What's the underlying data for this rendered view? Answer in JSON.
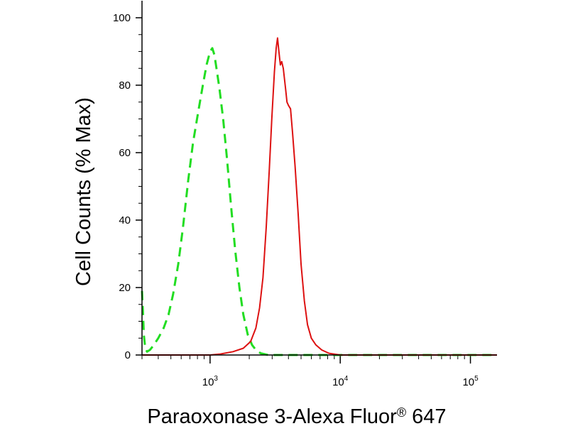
{
  "chart_data": {
    "type": "line",
    "xscale": "log",
    "xlim": [
      300,
      160000
    ],
    "ylim": [
      0,
      100
    ],
    "xlabel": "Paraoxonase 3-Alexa Fluor",
    "xlabel_superscript": "®",
    "xlabel_suffix": " 647",
    "ylabel": "Cell Counts (% Max)",
    "grid": false,
    "y_ticks": [
      {
        "value": 0,
        "label": "0"
      },
      {
        "value": 20,
        "label": "20"
      },
      {
        "value": 40,
        "label": "40"
      },
      {
        "value": 60,
        "label": "60"
      },
      {
        "value": 80,
        "label": "80"
      },
      {
        "value": 100,
        "label": "100"
      }
    ],
    "x_major_ticks": [
      {
        "value": 1000,
        "base": "10",
        "exp": "3"
      },
      {
        "value": 10000,
        "base": "10",
        "exp": "4"
      },
      {
        "value": 100000,
        "base": "10",
        "exp": "5"
      }
    ],
    "series": [
      {
        "style": "dashed",
        "color": "#22dd22",
        "points": [
          [
            300,
            19
          ],
          [
            305,
            13
          ],
          [
            310,
            6
          ],
          [
            318,
            2
          ],
          [
            328,
            1
          ],
          [
            345,
            1.5
          ],
          [
            370,
            3
          ],
          [
            400,
            5
          ],
          [
            440,
            8
          ],
          [
            480,
            12
          ],
          [
            520,
            18
          ],
          [
            570,
            27
          ],
          [
            620,
            38
          ],
          [
            680,
            52
          ],
          [
            740,
            63
          ],
          [
            810,
            72
          ],
          [
            880,
            80
          ],
          [
            940,
            86
          ],
          [
            1000,
            90
          ],
          [
            1040,
            91
          ],
          [
            1080,
            89
          ],
          [
            1120,
            85
          ],
          [
            1180,
            79
          ],
          [
            1260,
            70
          ],
          [
            1350,
            58
          ],
          [
            1450,
            44
          ],
          [
            1560,
            31
          ],
          [
            1680,
            20
          ],
          [
            1800,
            12
          ],
          [
            1950,
            6
          ],
          [
            2100,
            3
          ],
          [
            2250,
            1.5
          ],
          [
            2450,
            0.5
          ],
          [
            2800,
            0
          ],
          [
            4000,
            0
          ],
          [
            20000,
            0
          ],
          [
            160000,
            0
          ]
        ]
      },
      {
        "style": "solid",
        "color": "#dd1111",
        "points": [
          [
            300,
            0
          ],
          [
            1000,
            0
          ],
          [
            1200,
            0.3
          ],
          [
            1500,
            1
          ],
          [
            1800,
            2
          ],
          [
            2050,
            4
          ],
          [
            2250,
            8
          ],
          [
            2400,
            14
          ],
          [
            2550,
            23
          ],
          [
            2700,
            38
          ],
          [
            2850,
            55
          ],
          [
            2980,
            70
          ],
          [
            3120,
            84
          ],
          [
            3220,
            91
          ],
          [
            3300,
            94
          ],
          [
            3380,
            90
          ],
          [
            3470,
            86
          ],
          [
            3550,
            87
          ],
          [
            3650,
            85
          ],
          [
            3800,
            79
          ],
          [
            3900,
            75
          ],
          [
            4000,
            74
          ],
          [
            4150,
            73
          ],
          [
            4300,
            66
          ],
          [
            4500,
            56
          ],
          [
            4750,
            42
          ],
          [
            5000,
            27
          ],
          [
            5300,
            16
          ],
          [
            5600,
            9
          ],
          [
            6000,
            5
          ],
          [
            6500,
            3
          ],
          [
            7200,
            1.5
          ],
          [
            8200,
            0.5
          ],
          [
            10000,
            0
          ],
          [
            20000,
            0
          ],
          [
            160000,
            0
          ]
        ]
      }
    ]
  }
}
